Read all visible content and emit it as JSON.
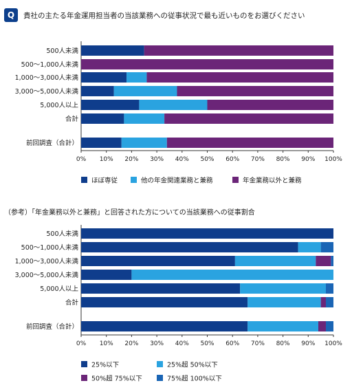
{
  "header": {
    "badge": "Q",
    "question": "貴社の主たる年金運用担当者の当該業務への従事状況で最も近いものをお選びください"
  },
  "subtitle": "（参考）「年金業務以外と兼務」と回答された方についての当該業務への従事割合",
  "chart_data": [
    {
      "type": "bar",
      "orientation": "horizontal",
      "stacked": true,
      "categories": [
        "500人未満",
        "500～1,000人未満",
        "1,000～3,000人未満",
        "3,000～5,000人未満",
        "5,000人以上",
        "合計",
        "前回調査（合計）"
      ],
      "series": [
        {
          "name": "ほぼ専従",
          "color": "#0f3d8c",
          "values": [
            25,
            0,
            18,
            13,
            23,
            17,
            16
          ]
        },
        {
          "name": "他の年金関連業務と兼務",
          "color": "#2aa3e0",
          "values": [
            0,
            0,
            8,
            25,
            27,
            16,
            18
          ]
        },
        {
          "name": "年金業務以外と兼務",
          "color": "#6b2578",
          "values": [
            75,
            100,
            74,
            62,
            50,
            67,
            66
          ]
        }
      ],
      "xlim": [
        0,
        100
      ],
      "xticks": [
        "0%",
        "10%",
        "20%",
        "30%",
        "40%",
        "50%",
        "60%",
        "70%",
        "80%",
        "90%",
        "100%"
      ],
      "legend_position": "bottom"
    },
    {
      "type": "bar",
      "orientation": "horizontal",
      "stacked": true,
      "categories": [
        "500人未満",
        "500～1,000人未満",
        "1,000～3,000人未満",
        "3,000～5,000人未満",
        "5,000人以上",
        "合計",
        "前回調査（合計）"
      ],
      "series": [
        {
          "name": "25%以下",
          "color": "#0f3d8c",
          "values": [
            100,
            86,
            61,
            20,
            63,
            66,
            66
          ]
        },
        {
          "name": "25%超 50%以下",
          "color": "#2aa3e0",
          "values": [
            0,
            9,
            32,
            80,
            34,
            29,
            28
          ]
        },
        {
          "name": "50%超 75%以下",
          "color": "#6b2578",
          "values": [
            0,
            0,
            6,
            0,
            0,
            2,
            3
          ]
        },
        {
          "name": "75%超 100%以下",
          "color": "#1a65b5",
          "values": [
            0,
            5,
            1,
            0,
            3,
            3,
            3
          ]
        }
      ],
      "xlim": [
        0,
        100
      ],
      "xticks": [
        "0%",
        "10%",
        "20%",
        "30%",
        "40%",
        "50%",
        "60%",
        "70%",
        "80%",
        "90%",
        "100%"
      ],
      "legend_position": "bottom"
    }
  ]
}
